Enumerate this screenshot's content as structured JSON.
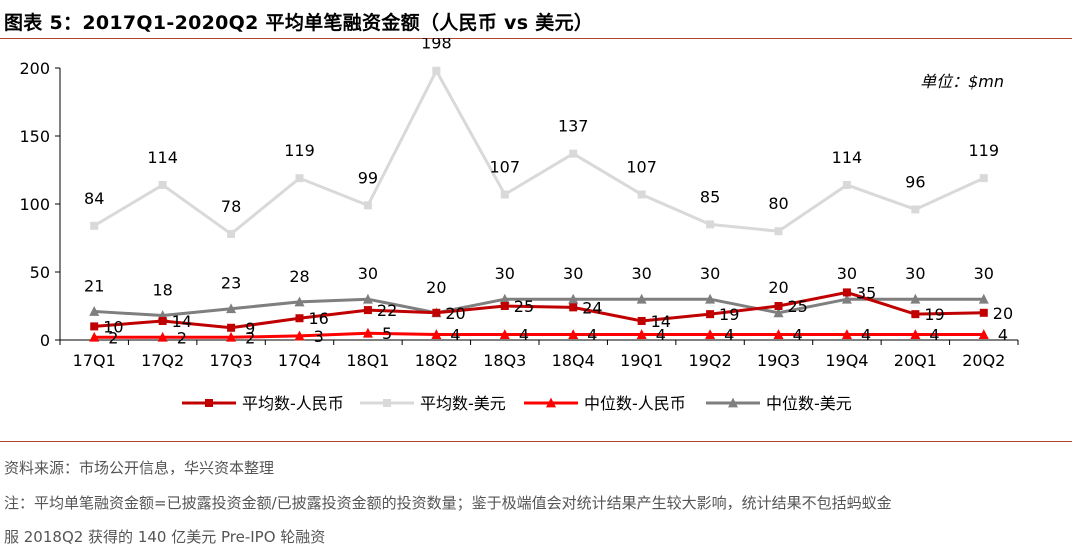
{
  "figure": {
    "title": "图表 5：2017Q1-2020Q2 平均单笔融资金额（人民币  vs  美元）",
    "unit_note": "单位：$mn"
  },
  "notes": {
    "source": "资料来源：市场公开信息，华兴资本整理",
    "note_line1": "注：平均单笔融资金额=已披露投资金额/已披露投资金额的投资数量；鉴于极端值会对统计结果产生较大影响，统计结果不包括蚂蚁金",
    "note_line2": "服 2018Q2 获得的 140 亿美元 Pre-IPO 轮融资"
  },
  "chart_data": {
    "type": "line",
    "title": "",
    "xlabel": "",
    "ylabel": "",
    "ylim": [
      0,
      200
    ],
    "yticks": [
      0,
      50,
      100,
      150,
      200
    ],
    "grid": false,
    "legend_position": "bottom",
    "categories": [
      "17Q1",
      "17Q2",
      "17Q3",
      "17Q4",
      "18Q1",
      "18Q2",
      "18Q3",
      "18Q4",
      "19Q1",
      "19Q2",
      "19Q3",
      "19Q4",
      "20Q1",
      "20Q2"
    ],
    "series": [
      {
        "name": "平均数-人民币",
        "color": "#c00000",
        "marker": "square",
        "values": [
          10,
          14,
          9,
          16,
          22,
          20,
          25,
          24,
          14,
          19,
          25,
          35,
          19,
          20
        ]
      },
      {
        "name": "平均数-美元",
        "color": "#d9d9d9",
        "marker": "square",
        "values": [
          84,
          114,
          78,
          119,
          99,
          198,
          107,
          137,
          107,
          85,
          80,
          114,
          96,
          119
        ]
      },
      {
        "name": "中位数-人民币",
        "color": "#ff0000",
        "marker": "triangle",
        "values": [
          2,
          2,
          2,
          3,
          5,
          4,
          4,
          4,
          4,
          4,
          4,
          4,
          4,
          4
        ]
      },
      {
        "name": "中位数-美元",
        "color": "#7f7f7f",
        "marker": "triangle",
        "values": [
          21,
          18,
          23,
          28,
          30,
          20,
          30,
          30,
          30,
          30,
          20,
          30,
          30,
          30
        ]
      }
    ]
  }
}
